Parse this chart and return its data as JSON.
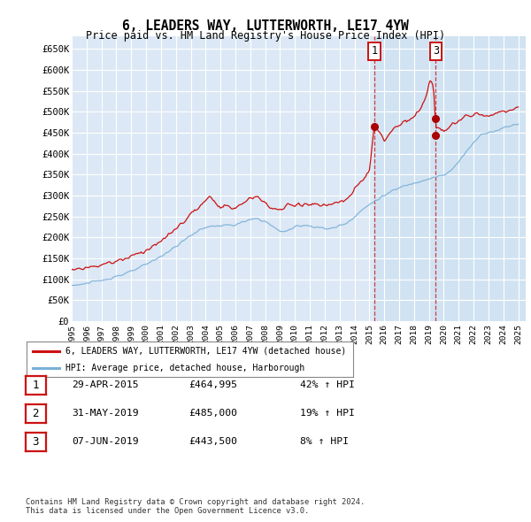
{
  "title": "6, LEADERS WAY, LUTTERWORTH, LE17 4YW",
  "subtitle": "Price paid vs. HM Land Registry's House Price Index (HPI)",
  "bg_color": "#dce8f5",
  "plot_bg_color": "#dce8f5",
  "grid_color": "#ffffff",
  "hpi_line_color": "#7ab0d8",
  "sale_line_color": "#cc1111",
  "sale_dot_color": "#aa0000",
  "highlight_bg": "#dce8f5",
  "ylim": [
    0,
    680000
  ],
  "yticks": [
    0,
    50000,
    100000,
    150000,
    200000,
    250000,
    300000,
    350000,
    400000,
    450000,
    500000,
    550000,
    600000,
    650000
  ],
  "ytick_labels": [
    "£0",
    "£50K",
    "£100K",
    "£150K",
    "£200K",
    "£250K",
    "£300K",
    "£350K",
    "£400K",
    "£450K",
    "£500K",
    "£550K",
    "£600K",
    "£650K"
  ],
  "xmin_year": 1995,
  "xmax_year": 2025.5,
  "xticks": [
    1995,
    1996,
    1997,
    1998,
    1999,
    2000,
    2001,
    2002,
    2003,
    2004,
    2005,
    2006,
    2007,
    2008,
    2009,
    2010,
    2011,
    2012,
    2013,
    2014,
    2015,
    2016,
    2017,
    2018,
    2019,
    2020,
    2021,
    2022,
    2023,
    2024,
    2025
  ],
  "sale_events": [
    {
      "label": "1",
      "date_x": 2015.33,
      "price": 464995
    },
    {
      "label": "2",
      "date_x": 2019.42,
      "price": 485000
    },
    {
      "label": "3",
      "date_x": 2019.46,
      "price": 443500
    }
  ],
  "legend_entries": [
    {
      "color": "#cc1111",
      "label": "6, LEADERS WAY, LUTTERWORTH, LE17 4YW (detached house)"
    },
    {
      "color": "#7ab0d8",
      "label": "HPI: Average price, detached house, Harborough"
    }
  ],
  "table_rows": [
    {
      "num": "1",
      "date": "29-APR-2015",
      "price": "£464,995",
      "change": "42% ↑ HPI"
    },
    {
      "num": "2",
      "date": "31-MAY-2019",
      "price": "£485,000",
      "change": "19% ↑ HPI"
    },
    {
      "num": "3",
      "date": "07-JUN-2019",
      "price": "£443,500",
      "change": "8% ↑ HPI"
    }
  ],
  "footer": "Contains HM Land Registry data © Crown copyright and database right 2024.\nThis data is licensed under the Open Government Licence v3.0."
}
